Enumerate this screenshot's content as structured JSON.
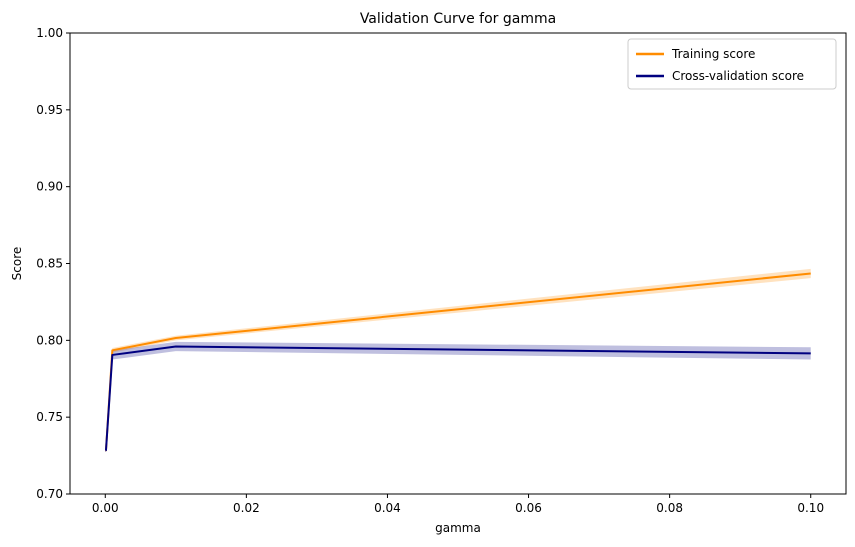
{
  "chart_data": {
    "type": "line",
    "title": "Validation Curve for gamma",
    "xlabel": "gamma",
    "ylabel": "Score",
    "xlim": [
      -0.005,
      0.105
    ],
    "ylim": [
      0.7,
      1.0
    ],
    "xticks": [
      0.0,
      0.02,
      0.04,
      0.06,
      0.08,
      0.1
    ],
    "xtick_labels": [
      "0.00",
      "0.02",
      "0.04",
      "0.06",
      "0.08",
      "0.10"
    ],
    "yticks": [
      0.7,
      0.75,
      0.8,
      0.85,
      0.9,
      0.95,
      1.0
    ],
    "ytick_labels": [
      "0.70",
      "0.75",
      "0.80",
      "0.85",
      "0.90",
      "0.95",
      "1.00"
    ],
    "grid": false,
    "legend_position": "top-right",
    "x": [
      1e-05,
      0.0001,
      0.001,
      0.01,
      0.1
    ],
    "series": [
      {
        "name": "Training score",
        "color": "#ff8c00",
        "values": [
          0.7285,
          0.7285,
          0.7935,
          0.8015,
          0.8435
        ],
        "std": [
          0.001,
          0.001,
          0.0015,
          0.0015,
          0.003
        ]
      },
      {
        "name": "Cross-validation score",
        "color": "#000080",
        "values": [
          0.7285,
          0.7285,
          0.7905,
          0.796,
          0.7915
        ],
        "std": [
          0.001,
          0.001,
          0.003,
          0.003,
          0.004
        ]
      }
    ]
  }
}
